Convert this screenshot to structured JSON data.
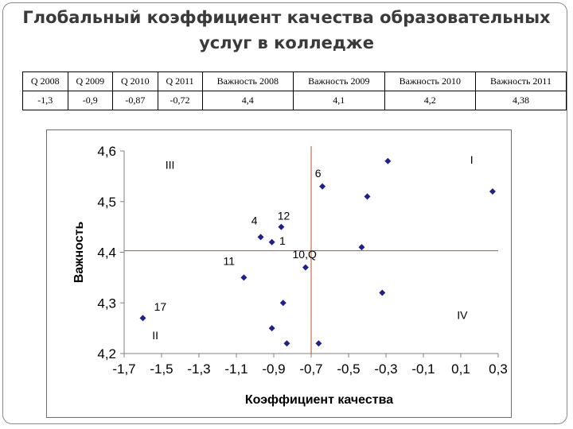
{
  "title_lines": [
    "Глобальный коэффициент качества  образовательных",
    "услуг в колледже"
  ],
  "table": {
    "headers": [
      "Q 2008",
      "Q 2009",
      "Q 2010",
      "Q 2011",
      "Важность 2008",
      "Важность 2009",
      "Важность 2010",
      "Важность 2011"
    ],
    "values": [
      "-1,3",
      "-0,9",
      "-0,87",
      "-0,72",
      "4,4",
      "4,1",
      "4,2",
      "4,38"
    ]
  },
  "chart_data": {
    "type": "scatter",
    "xlabel": "Коэффициент качества",
    "ylabel": "Важность",
    "xlim": [
      -1.7,
      0.3
    ],
    "ylim": [
      4.2,
      4.6
    ],
    "x_ticks": [
      "-1,7",
      "-1,5",
      "-1,3",
      "-1,1",
      "-0,9",
      "-0,7",
      "-0,5",
      "-0,3",
      "-0,1",
      "0,1",
      "0,3"
    ],
    "y_ticks": [
      "4,2",
      "4,3",
      "4,4",
      "4,5",
      "4,6"
    ],
    "marker_color": "#1f1f8f",
    "divider_color": "#b5532b",
    "divider_x": -0.7,
    "divider_y": 4.403,
    "points": [
      {
        "x": -1.6,
        "y": 4.27
      },
      {
        "x": -1.06,
        "y": 4.35
      },
      {
        "x": -0.97,
        "y": 4.43
      },
      {
        "x": -0.91,
        "y": 4.42
      },
      {
        "x": -0.86,
        "y": 4.45
      },
      {
        "x": -0.73,
        "y": 4.37
      },
      {
        "x": -0.64,
        "y": 4.53
      },
      {
        "x": -0.43,
        "y": 4.41
      },
      {
        "x": -0.4,
        "y": 4.51
      },
      {
        "x": -0.29,
        "y": 4.58
      },
      {
        "x": 0.27,
        "y": 4.52
      },
      {
        "x": -0.85,
        "y": 4.3
      },
      {
        "x": -0.91,
        "y": 4.25
      },
      {
        "x": -0.83,
        "y": 4.22
      },
      {
        "x": -0.66,
        "y": 4.22
      },
      {
        "x": -0.32,
        "y": 4.32
      }
    ],
    "annotations": [
      {
        "text": "I",
        "x": 0.15,
        "y": 4.575
      },
      {
        "text": "II",
        "x": -1.55,
        "y": 4.228
      },
      {
        "text": "III",
        "x": -1.48,
        "y": 4.565
      },
      {
        "text": "IV",
        "x": 0.08,
        "y": 4.268
      },
      {
        "text": "6",
        "x": -0.68,
        "y": 4.548
      },
      {
        "text": "12",
        "x": -0.88,
        "y": 4.464
      },
      {
        "text": "4",
        "x": -1.02,
        "y": 4.455
      },
      {
        "text": "1",
        "x": -0.87,
        "y": 4.415
      },
      {
        "text": "10,Q",
        "x": -0.8,
        "y": 4.388
      },
      {
        "text": "11",
        "x": -1.17,
        "y": 4.375
      },
      {
        "text": "17",
        "x": -1.54,
        "y": 4.285
      }
    ]
  }
}
